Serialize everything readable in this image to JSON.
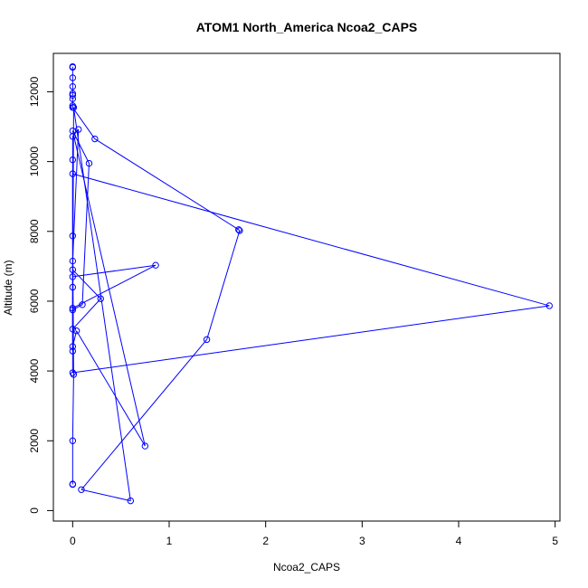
{
  "chart_data": {
    "type": "line",
    "title": "ATOM1 North_America Ncoa2_CAPS",
    "xlabel": "Ncoa2_CAPS",
    "ylabel": "Altitude (m)",
    "xlim": [
      -0.2,
      5.05
    ],
    "ylim": [
      -300,
      13100
    ],
    "x_ticks": [
      0,
      1,
      2,
      3,
      4,
      5
    ],
    "y_ticks": [
      0,
      2000,
      4000,
      6000,
      8000,
      10000,
      12000
    ],
    "grid": false,
    "marker": "open-circle",
    "color": "#0000ff",
    "series": [
      {
        "x": [
          0.0,
          0.0,
          0.0,
          0.0,
          0.0,
          0.0,
          0.0,
          0.0,
          0.0,
          0.23,
          1.72,
          1.73,
          1.39,
          0.09,
          0.6,
          0.01,
          0.0,
          0.86,
          0.0,
          0.0,
          0.29,
          0.0,
          0.0,
          0.1,
          0.17,
          0.0,
          0.75,
          0.04,
          0.0,
          0.0,
          0.0,
          4.94,
          0.0,
          0.0,
          0.0,
          0.06,
          0.0,
          0.0,
          0.0,
          0.01,
          0.0,
          0.0,
          0.0
        ],
        "y": [
          12720,
          12700,
          12400,
          12150,
          11950,
          11900,
          11800,
          11600,
          11550,
          10650,
          8050,
          8020,
          4900,
          600,
          280,
          11550,
          5800,
          7030,
          6700,
          6900,
          6070,
          5200,
          5750,
          5900,
          9950,
          10880,
          1850,
          5150,
          4700,
          4570,
          9650,
          5870,
          3950,
          6400,
          7150,
          10920,
          10720,
          10050,
          7870,
          3900,
          2000,
          760,
          750
        ]
      }
    ]
  }
}
